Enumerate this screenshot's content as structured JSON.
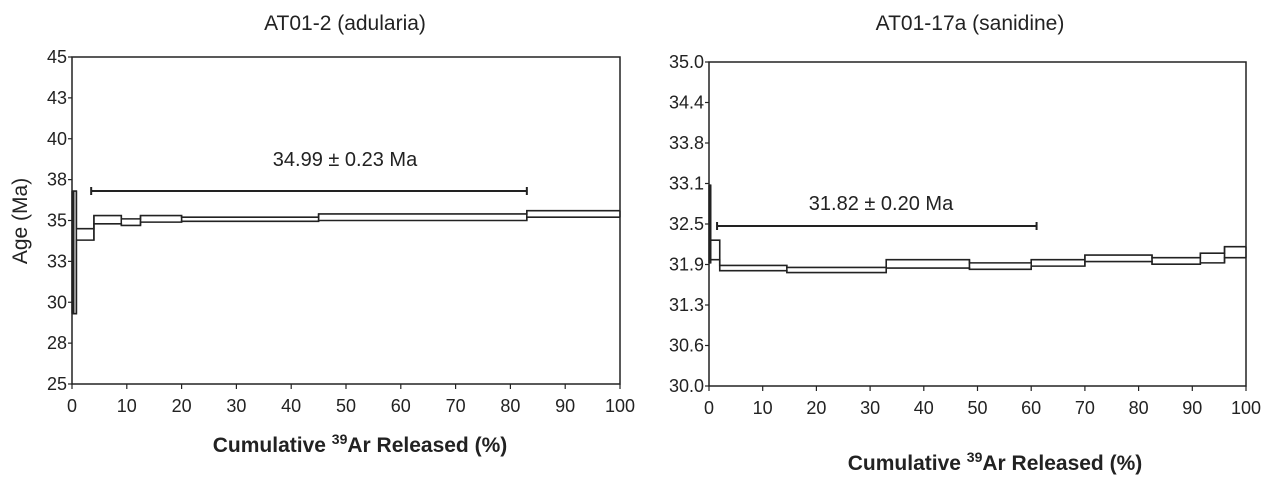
{
  "chart_data": [
    {
      "type": "line",
      "title": "AT01-2 (adularia)",
      "ylabel": "Age (Ma)",
      "xlabel_prefix": "Cumulative ",
      "xlabel_isotope": "39",
      "xlabel_suffix": "Ar Released (%)",
      "xlim": [
        0,
        100
      ],
      "ylim": [
        25,
        45
      ],
      "xticks": [
        "0",
        "10",
        "20",
        "30",
        "40",
        "50",
        "60",
        "70",
        "80",
        "90",
        "100"
      ],
      "yticks": [
        "25",
        "28",
        "30",
        "33",
        "35",
        "38",
        "40",
        "43",
        "45"
      ],
      "annotation": "34.99 ± 0.23 Ma",
      "plateau": [
        3.5,
        83
      ],
      "series": [
        {
          "steps": [
            {
              "x0": 0,
              "x1": 0.8,
              "low": 29.3,
              "high": 36.8
            },
            {
              "x0": 0.8,
              "x1": 4.0,
              "low": 33.8,
              "high": 34.5
            },
            {
              "x0": 4.0,
              "x1": 9.0,
              "low": 34.8,
              "high": 35.3
            },
            {
              "x0": 9.0,
              "x1": 12.5,
              "low": 34.7,
              "high": 35.1
            },
            {
              "x0": 12.5,
              "x1": 20.0,
              "low": 34.9,
              "high": 35.3
            },
            {
              "x0": 20.0,
              "x1": 45.0,
              "low": 34.95,
              "high": 35.2
            },
            {
              "x0": 45.0,
              "x1": 83.0,
              "low": 35.0,
              "high": 35.4
            },
            {
              "x0": 83.0,
              "x1": 100.0,
              "low": 35.2,
              "high": 35.6
            }
          ]
        }
      ]
    },
    {
      "type": "line",
      "title": "AT01-17a (sanidine)",
      "ylabel": "",
      "xlabel_prefix": "Cumulative ",
      "xlabel_isotope": "39",
      "xlabel_suffix": "Ar Released (%)",
      "xlim": [
        0,
        100
      ],
      "ylim": [
        30.0,
        35.0
      ],
      "xticks": [
        "0",
        "10",
        "20",
        "30",
        "40",
        "50",
        "60",
        "70",
        "80",
        "90",
        "100"
      ],
      "yticks": [
        "30.0",
        "30.6",
        "31.3",
        "31.9",
        "32.5",
        "33.1",
        "33.8",
        "34.4",
        "35.0"
      ],
      "annotation": "31.82 ± 0.20 Ma",
      "plateau": [
        1.5,
        61
      ],
      "series": [
        {
          "steps": [
            {
              "x0": 0,
              "x1": 0.3,
              "low": 31.9,
              "high": 33.1
            },
            {
              "x0": 0.3,
              "x1": 2.0,
              "low": 31.95,
              "high": 32.25
            },
            {
              "x0": 2.0,
              "x1": 14.5,
              "low": 31.78,
              "high": 31.86
            },
            {
              "x0": 14.5,
              "x1": 33.0,
              "low": 31.75,
              "high": 31.83
            },
            {
              "x0": 33.0,
              "x1": 48.5,
              "low": 31.82,
              "high": 31.95
            },
            {
              "x0": 48.5,
              "x1": 60.0,
              "low": 31.8,
              "high": 31.9
            },
            {
              "x0": 60.0,
              "x1": 70.0,
              "low": 31.85,
              "high": 31.95
            },
            {
              "x0": 70.0,
              "x1": 82.5,
              "low": 31.92,
              "high": 32.02
            },
            {
              "x0": 82.5,
              "x1": 91.5,
              "low": 31.88,
              "high": 31.98
            },
            {
              "x0": 91.5,
              "x1": 96.0,
              "low": 31.9,
              "high": 32.05
            },
            {
              "x0": 96.0,
              "x1": 100.0,
              "low": 31.98,
              "high": 32.15
            }
          ]
        }
      ]
    }
  ]
}
